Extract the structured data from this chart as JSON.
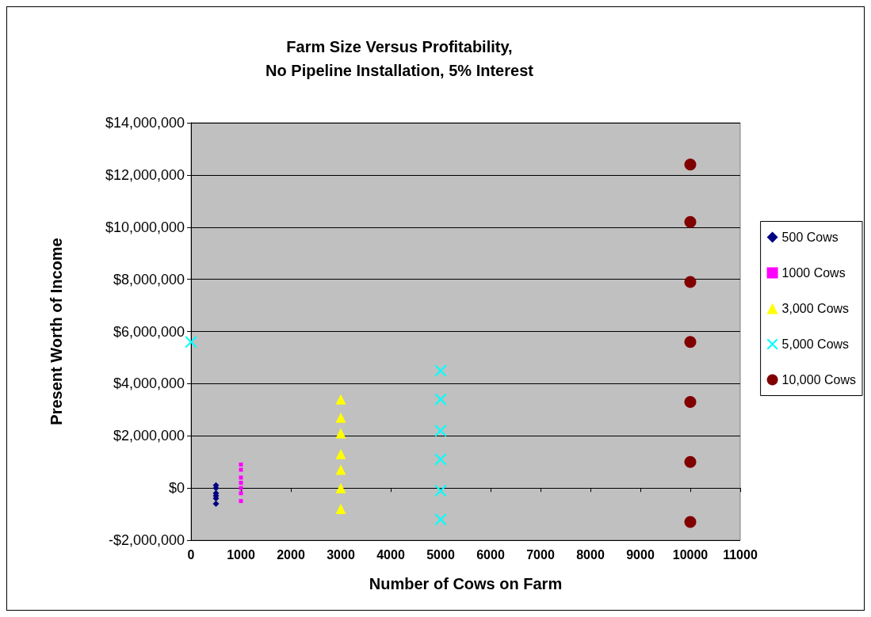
{
  "chart_data": {
    "type": "scatter",
    "title": "Farm Size Versus Profitability,\nNo Pipeline Installation, 5% Interest",
    "xlabel": "Number of Cows on Farm",
    "ylabel": "Present Worth of Income",
    "xlim": [
      0,
      11000
    ],
    "xticks": [
      0,
      1000,
      2000,
      3000,
      4000,
      5000,
      6000,
      7000,
      8000,
      9000,
      10000,
      11000
    ],
    "ylim": [
      -2000000,
      14000000
    ],
    "yticks": [
      {
        "value": -2000000,
        "label": "-$2,000,000"
      },
      {
        "value": 0,
        "label": "$0"
      },
      {
        "value": 2000000,
        "label": "$2,000,000"
      },
      {
        "value": 4000000,
        "label": "$4,000,000"
      },
      {
        "value": 6000000,
        "label": "$6,000,000"
      },
      {
        "value": 8000000,
        "label": "$8,000,000"
      },
      {
        "value": 10000000,
        "label": "$10,000,000"
      },
      {
        "value": 12000000,
        "label": "$12,000,000"
      },
      {
        "value": 14000000,
        "label": "$14,000,000"
      }
    ],
    "grid": "y",
    "legend": "right",
    "series": [
      {
        "name": "500 Cows",
        "color": "#000080",
        "marker": "diamond",
        "x": [
          500,
          500,
          500,
          500,
          500,
          500
        ],
        "values": [
          100000,
          0,
          -200000,
          -300000,
          -400000,
          -600000
        ]
      },
      {
        "name": "1000 Cows",
        "color": "#ff00ff",
        "marker": "square",
        "x": [
          1000,
          1000,
          1000,
          1000,
          1000,
          1000,
          1000
        ],
        "values": [
          900000,
          700000,
          400000,
          200000,
          0,
          -200000,
          -500000
        ]
      },
      {
        "name": "3,000 Cows",
        "color": "#ffff00",
        "marker": "triangle",
        "x": [
          3000,
          3000,
          3000,
          3000,
          3000,
          3000,
          3000
        ],
        "values": [
          3400000,
          2700000,
          2100000,
          1300000,
          700000,
          0,
          -800000
        ]
      },
      {
        "name": "5,000 Cows",
        "color": "#00ffff",
        "marker": "cross",
        "x": [
          0,
          5000,
          5000,
          5000,
          5000,
          5000,
          5000
        ],
        "values": [
          5600000,
          4500000,
          3400000,
          2200000,
          1100000,
          -100000,
          -1200000
        ]
      },
      {
        "name": "10,000 Cows",
        "color": "#800000",
        "marker": "circle",
        "x": [
          10000,
          10000,
          10000,
          10000,
          10000,
          10000,
          10000
        ],
        "values": [
          12400000,
          10200000,
          7900000,
          5600000,
          3300000,
          1000000,
          -1300000
        ]
      }
    ]
  }
}
